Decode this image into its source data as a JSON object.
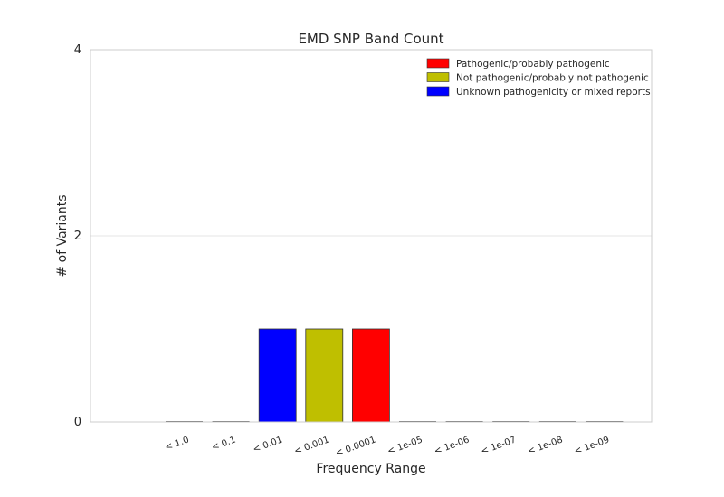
{
  "chart_data": {
    "type": "bar",
    "title": "EMD SNP Band Count",
    "xlabel": "Frequency Range",
    "ylabel": "# of Variants",
    "ylim": [
      0,
      4
    ],
    "yticks": [
      "0",
      "2",
      "4"
    ],
    "grid": true,
    "legend_position": "top-right",
    "categories": [
      "< 1.0",
      "< 0.1",
      "< 0.01",
      "< 0.001",
      "< 0.0001",
      "< 1e-05",
      "< 1e-06",
      "< 1e-07",
      "< 1e-08",
      "< 1e-09"
    ],
    "series": [
      {
        "name": "Pathogenic/probably pathogenic",
        "color": "#ff0000",
        "values": [
          0,
          0,
          0,
          0,
          1,
          0,
          0,
          0,
          0,
          0
        ]
      },
      {
        "name": "Not pathogenic/probably not pathogenic",
        "color": "#bfbf00",
        "values": [
          0,
          0,
          0,
          1,
          0,
          0,
          0,
          0,
          0,
          0
        ]
      },
      {
        "name": "Unknown pathogenicity or mixed reports",
        "color": "#0000ff",
        "values": [
          0,
          0,
          1,
          0,
          0,
          0,
          0,
          0,
          0,
          0
        ]
      }
    ]
  }
}
